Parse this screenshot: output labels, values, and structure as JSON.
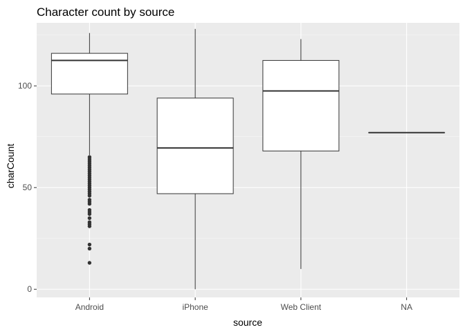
{
  "chart_data": {
    "type": "boxplot",
    "title": "Character count by source",
    "xlabel": "source",
    "ylabel": "charCount",
    "categories": [
      "Android",
      "iPhone",
      "Web Client",
      "NA"
    ],
    "ylim": [
      -4,
      131
    ],
    "y_ticks": [
      0,
      50,
      100
    ],
    "y_minor_ticks": [
      25,
      75,
      125
    ],
    "grid": true,
    "legend": "none",
    "boxes": [
      {
        "category": "Android",
        "whisker_low": 66,
        "q1": 96,
        "median": 112.5,
        "q3": 116,
        "whisker_high": 126,
        "outliers": [
          65,
          64,
          63,
          62,
          61,
          60,
          59,
          58,
          57,
          56,
          55,
          54,
          53,
          52,
          51,
          50,
          49,
          48,
          47,
          46,
          44,
          43,
          42,
          39,
          38,
          37,
          35,
          33,
          32,
          31,
          22,
          20,
          13
        ]
      },
      {
        "category": "iPhone",
        "whisker_low": 0,
        "q1": 47,
        "median": 69.5,
        "q3": 94,
        "whisker_high": 128,
        "outliers": []
      },
      {
        "category": "Web Client",
        "whisker_low": 10,
        "q1": 68,
        "median": 97.5,
        "q3": 112.5,
        "whisker_high": 123,
        "outliers": []
      },
      {
        "category": "NA",
        "whisker_low": 77,
        "q1": 77,
        "median": 77,
        "q3": 77,
        "whisker_high": 77,
        "outliers": []
      }
    ],
    "colors": {
      "panel": "#ebebeb",
      "grid_major": "#ffffff",
      "grid_minor": "#f5f5f5",
      "box_fill": "#ffffff",
      "box_line": "#333333",
      "outlier": "#333333"
    }
  }
}
